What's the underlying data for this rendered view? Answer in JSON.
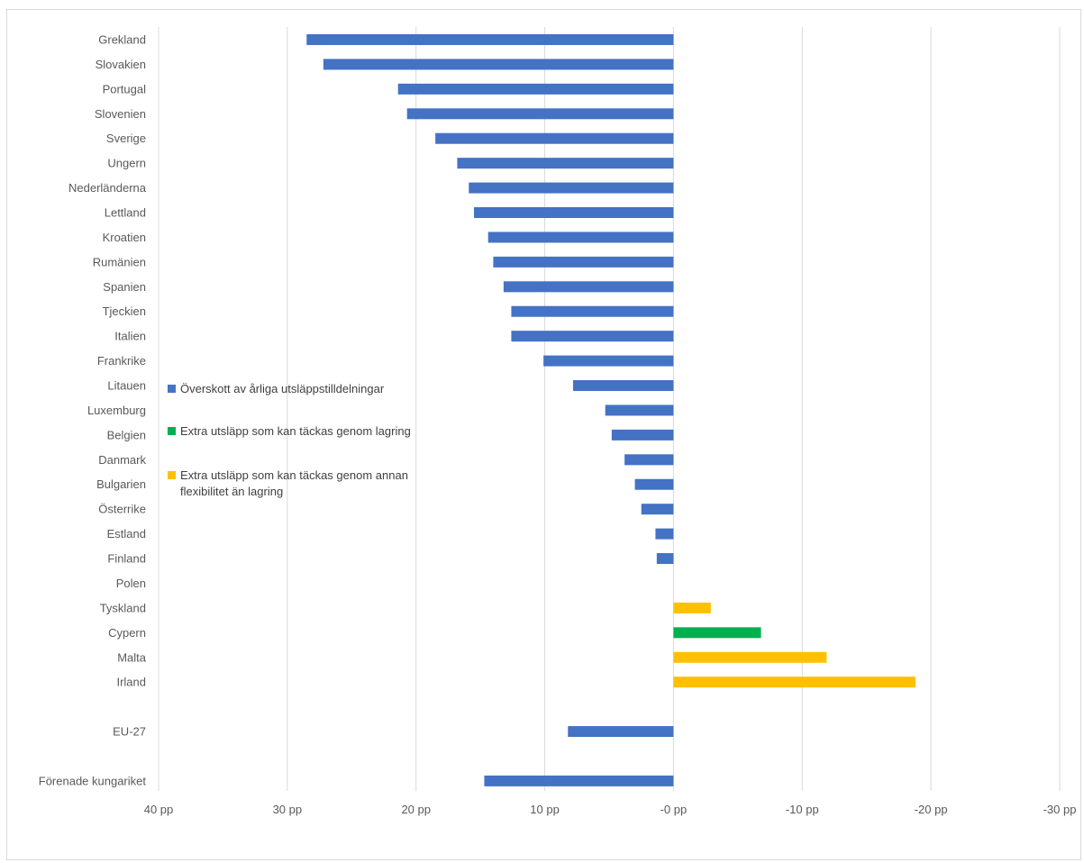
{
  "chart_data": {
    "type": "bar",
    "orientation": "horizontal",
    "x_axis_reversed": true,
    "xlim": [
      -30,
      40
    ],
    "x_ticks": [
      40,
      30,
      20,
      10,
      0,
      -10,
      -20,
      -30
    ],
    "x_tick_labels": [
      "40 pp",
      "30 pp",
      "20 pp",
      "10 pp",
      "-0 pp",
      "-10 pp",
      "-20 pp",
      "-30 pp"
    ],
    "grid": "vertical",
    "legend_position": "left-inside",
    "title": "",
    "xlabel": "",
    "ylabel": "",
    "categories": [
      "Grekland",
      "Slovakien",
      "Portugal",
      "Slovenien",
      "Sverige",
      "Ungern",
      "Nederländerna",
      "Lettland",
      "Kroatien",
      "Rumänien",
      "Spanien",
      "Tjeckien",
      "Italien",
      "Frankrike",
      "Litauen",
      "Luxemburg",
      "Belgien",
      "Danmark",
      "Bulgarien",
      "Österrike",
      "Estland",
      "Finland",
      "Polen",
      "Tyskland",
      "Cypern",
      "Malta",
      "Irland",
      "",
      "EU-27",
      "",
      "Förenade kungariket"
    ],
    "series": [
      {
        "name": "Överskott av årliga utsläppstilldelningar",
        "color": "#4472c4",
        "values": [
          28.5,
          27.2,
          21.4,
          20.7,
          18.5,
          16.8,
          15.9,
          15.5,
          14.4,
          14.0,
          13.2,
          12.6,
          12.6,
          10.1,
          7.8,
          5.3,
          4.8,
          3.8,
          3.0,
          2.5,
          1.4,
          1.3,
          0,
          null,
          null,
          null,
          null,
          null,
          8.2,
          null,
          14.7
        ]
      },
      {
        "name": "Extra utsläpp som kan täckas genom lagring",
        "color": "#00b050",
        "values": [
          null,
          null,
          null,
          null,
          null,
          null,
          null,
          null,
          null,
          null,
          null,
          null,
          null,
          null,
          null,
          null,
          null,
          null,
          null,
          null,
          null,
          null,
          null,
          null,
          -6.8,
          null,
          null,
          null,
          null,
          null,
          null
        ]
      },
      {
        "name": "Extra utsläpp som kan täckas genom annan flexibilitet än lagring",
        "color": "#ffc000",
        "values": [
          null,
          null,
          null,
          null,
          null,
          null,
          null,
          null,
          null,
          null,
          null,
          null,
          null,
          null,
          null,
          null,
          null,
          null,
          null,
          null,
          null,
          null,
          null,
          -2.9,
          null,
          -11.9,
          -18.8,
          null,
          null,
          null,
          null
        ]
      }
    ]
  }
}
